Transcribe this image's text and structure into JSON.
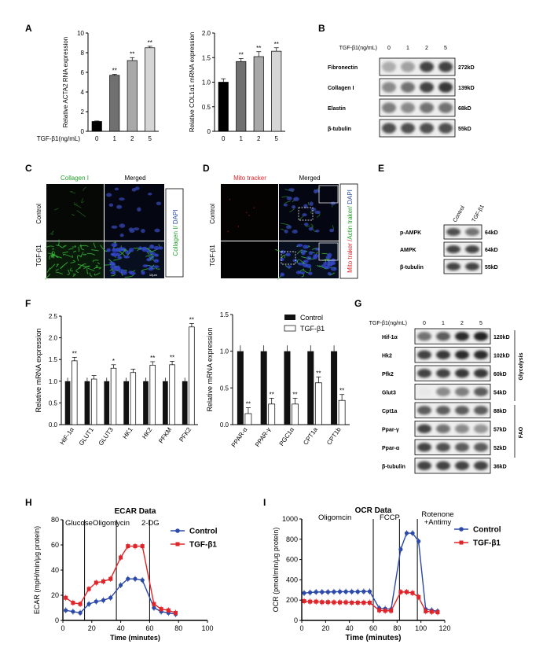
{
  "panels": {
    "A": "A",
    "B": "B",
    "C": "C",
    "D": "D",
    "E": "E",
    "F": "F",
    "G": "G",
    "H": "H",
    "I": "I"
  },
  "chart_data": [
    {
      "type": "bar",
      "panel": "A",
      "categories": [
        "0",
        "1",
        "2",
        "5"
      ],
      "values": [
        1.0,
        5.7,
        7.2,
        8.5
      ],
      "errors": [
        0.05,
        0.1,
        0.3,
        0.15
      ],
      "sig": [
        "",
        "**",
        "**",
        "**"
      ],
      "ylabel": "Relative ACTA2 RNA expression",
      "xlabel": "TGF-β1(ng/mL)",
      "ylim": [
        0,
        10
      ],
      "yticks": [
        0,
        2,
        4,
        6,
        8,
        10
      ]
    },
    {
      "type": "bar",
      "panel": "A",
      "categories": [
        "0",
        "1",
        "2",
        "5"
      ],
      "values": [
        1.0,
        1.42,
        1.52,
        1.63
      ],
      "errors": [
        0.07,
        0.06,
        0.1,
        0.07
      ],
      "sig": [
        "",
        "**",
        "**",
        "**"
      ],
      "ylabel": "Relative COL1α1 mRNA expression",
      "ylim": [
        0,
        2.0
      ],
      "yticks": [
        "0",
        "0.5",
        "1.0",
        "1.5",
        "2.0"
      ]
    },
    {
      "type": "bar",
      "panel": "F",
      "categories": [
        "HIF-1α",
        "GLUT1",
        "GLUT3",
        "HK1",
        "HK2",
        "PFKM",
        "PFK2"
      ],
      "series": [
        {
          "name": "Control",
          "values": [
            1.0,
            1.0,
            1.0,
            1.0,
            1.0,
            1.0,
            1.0
          ]
        },
        {
          "name": "TGF-β1",
          "values": [
            1.47,
            1.05,
            1.3,
            1.2,
            1.37,
            1.38,
            2.25
          ]
        }
      ],
      "sig": [
        "**",
        "",
        "*",
        "",
        "**",
        "**",
        "**"
      ],
      "ylabel": "Relative  mRNA expression",
      "ylim": [
        0,
        2.5
      ],
      "yticks": [
        "0.0",
        "0.5",
        "1.0",
        "1.5",
        "2.0",
        "2.5"
      ]
    },
    {
      "type": "bar",
      "panel": "F",
      "categories": [
        "PPAR-α",
        "PPAR-γ",
        "PGC1α",
        "CPT1a",
        "CPT1b"
      ],
      "series": [
        {
          "name": "Control",
          "values": [
            1.0,
            1.0,
            1.0,
            1.0,
            1.0
          ]
        },
        {
          "name": "TGF-β1",
          "values": [
            0.15,
            0.28,
            0.28,
            0.57,
            0.33
          ]
        }
      ],
      "sig": [
        "**",
        "**",
        "**",
        "**",
        "**"
      ],
      "ylabel": "Relative  mRNA expression",
      "ylim": [
        0,
        1.5
      ],
      "yticks": [
        "0.0",
        "0.5",
        "1.0",
        "1.5"
      ]
    },
    {
      "type": "line",
      "panel": "H",
      "title": "ECAR Data",
      "xlabel": "Time (minutes)",
      "ylabel": "ECAR (mpH/min/μg protein)",
      "xlim": [
        0,
        100
      ],
      "ylim": [
        0,
        80
      ],
      "xticks": [
        0,
        20,
        40,
        60,
        80,
        100
      ],
      "yticks": [
        0,
        20,
        40,
        60,
        80
      ],
      "annotations": [
        "Glucose",
        "Oligomycin",
        "2-DG"
      ],
      "injections": [
        15,
        37,
        60
      ],
      "x": [
        2,
        7,
        12,
        18,
        23,
        28,
        33,
        40,
        45,
        50,
        55,
        63,
        68,
        73,
        78
      ],
      "series": [
        {
          "name": "Control",
          "color": "#2c4aa8",
          "values": [
            8,
            7,
            6,
            13,
            15,
            16,
            18,
            28,
            33,
            33,
            32,
            10,
            7,
            6,
            5
          ]
        },
        {
          "name": "TGF-β1",
          "color": "#e0252a",
          "values": [
            18,
            14,
            13,
            25,
            30,
            31,
            33,
            50,
            59,
            59,
            59,
            13,
            9,
            8,
            6
          ]
        }
      ]
    },
    {
      "type": "line",
      "panel": "I",
      "title": "OCR Data",
      "xlabel": "Time (minutes)",
      "ylabel": "OCR (pmol/min/μg protein)",
      "xlim": [
        0,
        120
      ],
      "ylim": [
        0,
        1000
      ],
      "xticks": [
        0,
        20,
        40,
        60,
        80,
        100,
        120
      ],
      "yticks": [
        0,
        200,
        400,
        600,
        800,
        1000
      ],
      "annotations": [
        "Oligomcin",
        "FCCP",
        "Rotenone\n+Antimy"
      ],
      "injections": [
        60,
        82,
        97
      ],
      "x": [
        2,
        7,
        12,
        17,
        22,
        27,
        32,
        37,
        42,
        47,
        52,
        57,
        65,
        70,
        75,
        83,
        88,
        93,
        98,
        104,
        109,
        114
      ],
      "series": [
        {
          "name": "Control",
          "color": "#2c4aa8",
          "values": [
            270,
            275,
            280,
            280,
            280,
            282,
            283,
            283,
            283,
            283,
            285,
            285,
            120,
            115,
            110,
            700,
            860,
            860,
            780,
            110,
            100,
            90
          ]
        },
        {
          "name": "TGF-β1",
          "color": "#e0252a",
          "values": [
            190,
            185,
            185,
            180,
            180,
            178,
            178,
            178,
            175,
            175,
            175,
            175,
            100,
            95,
            95,
            280,
            280,
            270,
            230,
            90,
            85,
            80
          ]
        }
      ]
    }
  ],
  "blotB": {
    "header": "TGF-β1(ng/mL)",
    "conc": [
      "0",
      "1",
      "2",
      "5"
    ],
    "rows": [
      {
        "name": "Fibronectin",
        "kd": "272kD"
      },
      {
        "name": "Collagen I",
        "kd": "139kD"
      },
      {
        "name": "Elastin",
        "kd": "68kD"
      },
      {
        "name": "β-tubulin",
        "kd": "55kD"
      }
    ]
  },
  "blotE": {
    "cols": [
      "Control",
      "TGF-β1"
    ],
    "rows": [
      {
        "name": "p-AMPK",
        "kd": "64kD"
      },
      {
        "name": "AMPK",
        "kd": "64kD"
      },
      {
        "name": "β-tubulin",
        "kd": "55kD"
      }
    ]
  },
  "blotG": {
    "header": "TGF-β1(ng/mL)",
    "conc": [
      "0",
      "1",
      "2",
      "5"
    ],
    "rows": [
      {
        "name": "Hif-1α",
        "kd": "120kD"
      },
      {
        "name": "Hk2",
        "kd": "102kD"
      },
      {
        "name": "Pfk2",
        "kd": "60kD"
      },
      {
        "name": "Glut3",
        "kd": "54kD"
      },
      {
        "name": "Cpt1a",
        "kd": "88kD"
      },
      {
        "name": "Ppar-γ",
        "kd": "57kD"
      },
      {
        "name": "Ppar-α",
        "kd": "52kD"
      },
      {
        "name": "β-tubulin",
        "kd": "36kD"
      }
    ],
    "group1": "Glycolysis",
    "group2": "FAO"
  },
  "micro": {
    "collagen": "Collagen I",
    "merged": "Merged",
    "control": "Control",
    "tgf": "TGF-β1",
    "sideC1": "Collagen I/ ",
    "sideC2": "DAPI",
    "mito": "Mito tracker",
    "sideD1": "Mito traker /",
    "sideD2": "Actin traker/ ",
    "sideD3": "DAPI",
    "scale": "10μm"
  }
}
